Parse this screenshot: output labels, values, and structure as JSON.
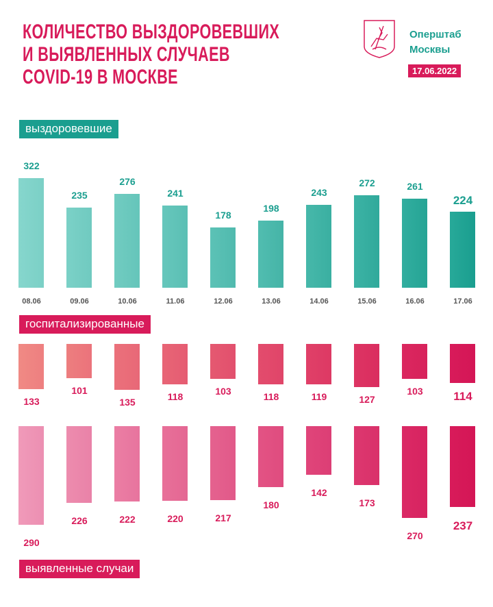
{
  "header": {
    "title_lines": [
      "КОЛИЧЕСТВО ВЫЗДОРОВЕВШИХ",
      "И ВЫЯВЛЕННЫХ СЛУЧАЕВ",
      "COVID-19 В МОСКВЕ"
    ],
    "org_lines": [
      "Оперштаб",
      "Москвы"
    ],
    "date": "17.06.2022",
    "logo": "moscow-coat-of-arms"
  },
  "colors": {
    "title": "#d81b5a",
    "teal": "#1a9e8f",
    "pink": "#d81b5a"
  },
  "chart_data": {
    "type": "bar",
    "categories": [
      "08.06",
      "09.06",
      "10.06",
      "11.06",
      "12.06",
      "13.06",
      "14.06",
      "15.06",
      "16.06",
      "17.06"
    ],
    "series": [
      {
        "name": "выздоровевшие",
        "values": [
          322,
          235,
          276,
          241,
          178,
          198,
          243,
          272,
          261,
          224
        ]
      },
      {
        "name": "госпитализированные",
        "values": [
          133,
          101,
          135,
          118,
          103,
          118,
          119,
          127,
          103,
          114
        ]
      },
      {
        "name": "выявленные случаи",
        "values": [
          290,
          226,
          222,
          220,
          217,
          180,
          142,
          173,
          270,
          237
        ]
      }
    ]
  }
}
